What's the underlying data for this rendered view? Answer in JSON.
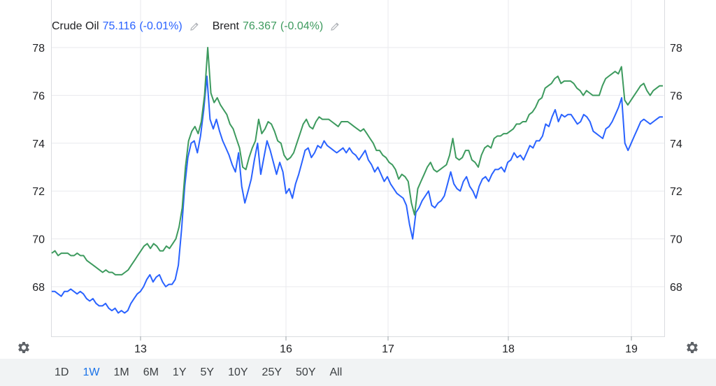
{
  "legend": [
    {
      "name": "Crude Oil",
      "value": "75.116",
      "change": "(-0.01%)",
      "color": "#2962ff",
      "edit_icon": "pencil-icon"
    },
    {
      "name": "Brent",
      "value": "76.367",
      "change": "(-0.04%)",
      "color": "#3d9a5e",
      "edit_icon": "pencil-icon"
    }
  ],
  "settings_icon": "gear-icon",
  "range_buttons": [
    "1D",
    "1W",
    "1M",
    "6M",
    "1Y",
    "5Y",
    "10Y",
    "25Y",
    "50Y",
    "All"
  ],
  "active_range": "1W",
  "chart_data": {
    "type": "line",
    "x_labels": [
      "13",
      "16",
      "17",
      "18",
      "19"
    ],
    "y_ticks": [
      68,
      70,
      72,
      74,
      76,
      78
    ],
    "ylim": [
      66.2,
      79.6
    ],
    "grid": true,
    "legend_position": "top-left",
    "series": [
      {
        "name": "Crude Oil",
        "color": "#2962ff",
        "values": [
          67.8,
          67.8,
          67.7,
          67.6,
          67.8,
          67.8,
          67.9,
          67.8,
          67.7,
          67.8,
          67.7,
          67.5,
          67.4,
          67.5,
          67.3,
          67.2,
          67.2,
          67.3,
          67.1,
          67.0,
          67.1,
          66.9,
          67.0,
          66.9,
          67.0,
          67.3,
          67.5,
          67.7,
          67.8,
          68.0,
          68.3,
          68.5,
          68.2,
          68.4,
          68.5,
          68.2,
          68.0,
          68.1,
          68.1,
          68.3,
          68.9,
          70.4,
          72.2,
          73.4,
          74.0,
          74.1,
          73.6,
          74.3,
          75.4,
          76.8,
          75.0,
          74.6,
          75.0,
          74.5,
          74.1,
          73.8,
          73.5,
          73.1,
          72.8,
          73.6,
          72.2,
          71.5,
          72.0,
          72.5,
          73.3,
          74.0,
          72.7,
          73.4,
          74.1,
          73.7,
          73.2,
          72.7,
          73.2,
          72.8,
          71.9,
          72.1,
          71.7,
          72.3,
          72.7,
          73.2,
          73.7,
          73.8,
          73.4,
          73.6,
          73.9,
          73.8,
          74.1,
          73.9,
          73.8,
          73.7,
          73.6,
          73.7,
          73.8,
          73.6,
          73.8,
          73.6,
          73.5,
          73.3,
          73.5,
          73.7,
          73.3,
          73.1,
          72.8,
          73.0,
          72.7,
          72.4,
          72.6,
          72.3,
          72.1,
          71.9,
          71.8,
          71.7,
          71.4,
          70.6,
          70.0,
          71.1,
          71.3,
          71.6,
          71.8,
          72.0,
          71.4,
          71.3,
          71.5,
          71.6,
          71.8,
          72.3,
          72.8,
          72.3,
          72.1,
          72.0,
          72.4,
          72.6,
          72.2,
          72.0,
          71.7,
          72.2,
          72.5,
          72.6,
          72.4,
          72.7,
          72.9,
          72.9,
          73.0,
          72.8,
          73.2,
          73.3,
          73.6,
          73.4,
          73.5,
          73.3,
          73.6,
          73.9,
          73.8,
          74.1,
          74.1,
          74.3,
          74.8,
          74.7,
          75.1,
          75.4,
          74.9,
          75.2,
          75.1,
          75.2,
          75.2,
          75.0,
          74.8,
          74.9,
          75.2,
          75.1,
          74.9,
          74.5,
          74.4,
          74.3,
          74.2,
          74.6,
          74.7,
          74.9,
          75.2,
          75.5,
          75.9,
          74.0,
          73.7,
          74.0,
          74.3,
          74.6,
          74.9,
          75.0,
          74.9,
          74.8,
          74.9,
          75.0,
          75.1,
          75.1
        ]
      },
      {
        "name": "Brent",
        "color": "#3d9a5e",
        "values": [
          69.4,
          69.5,
          69.3,
          69.4,
          69.4,
          69.4,
          69.3,
          69.3,
          69.4,
          69.3,
          69.3,
          69.1,
          69.0,
          68.9,
          68.8,
          68.7,
          68.6,
          68.7,
          68.6,
          68.6,
          68.5,
          68.5,
          68.5,
          68.6,
          68.7,
          68.9,
          69.1,
          69.3,
          69.5,
          69.7,
          69.8,
          69.6,
          69.8,
          69.7,
          69.5,
          69.5,
          69.7,
          69.6,
          69.8,
          70.0,
          70.5,
          71.3,
          73.0,
          74.1,
          74.5,
          74.7,
          74.4,
          74.9,
          76.0,
          78.0,
          76.1,
          75.7,
          75.9,
          75.6,
          75.4,
          75.2,
          74.8,
          74.6,
          74.2,
          73.8,
          73.0,
          72.9,
          73.4,
          73.8,
          74.1,
          75.0,
          74.4,
          74.6,
          74.9,
          74.8,
          74.5,
          74.1,
          74.0,
          73.5,
          73.3,
          73.4,
          73.6,
          74.0,
          74.4,
          74.8,
          75.0,
          74.7,
          74.6,
          74.9,
          75.1,
          75.0,
          75.0,
          75.0,
          74.9,
          74.8,
          74.7,
          74.9,
          74.9,
          74.9,
          74.8,
          74.7,
          74.6,
          74.5,
          74.6,
          74.4,
          74.2,
          74.0,
          73.7,
          73.7,
          73.5,
          73.4,
          73.2,
          73.1,
          72.9,
          72.5,
          72.7,
          72.6,
          72.4,
          71.5,
          71.0,
          72.1,
          72.4,
          72.7,
          73.0,
          73.2,
          72.9,
          72.8,
          72.9,
          73.0,
          73.1,
          73.5,
          74.2,
          73.4,
          73.3,
          73.4,
          73.7,
          73.7,
          73.3,
          73.2,
          73.0,
          73.5,
          73.8,
          73.9,
          73.8,
          74.2,
          74.3,
          74.3,
          74.4,
          74.4,
          74.5,
          74.6,
          74.8,
          74.8,
          74.9,
          74.9,
          75.2,
          75.3,
          75.5,
          75.8,
          75.9,
          76.3,
          76.4,
          76.5,
          76.7,
          76.8,
          76.5,
          76.6,
          76.6,
          76.6,
          76.5,
          76.3,
          76.2,
          76.0,
          76.2,
          76.1,
          76.0,
          76.0,
          76.0,
          76.4,
          76.7,
          76.8,
          76.9,
          77.0,
          76.9,
          77.2,
          75.8,
          75.6,
          75.8,
          76.0,
          76.2,
          76.4,
          76.5,
          76.2,
          76.0,
          76.2,
          76.3,
          76.4,
          76.4
        ]
      }
    ]
  }
}
